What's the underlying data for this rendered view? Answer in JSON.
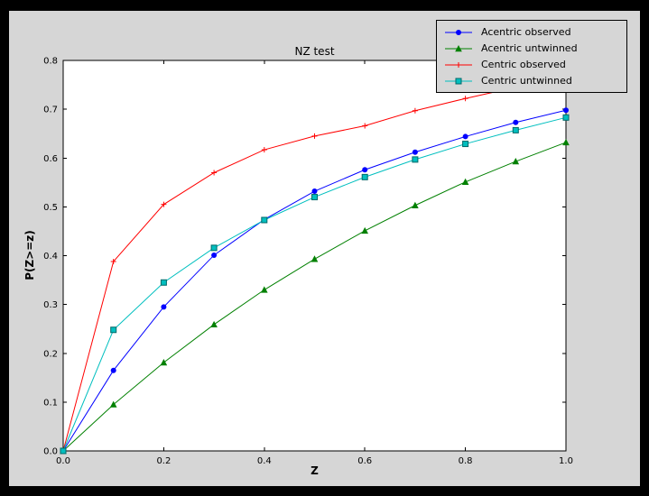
{
  "window": {
    "background": "#000000",
    "figure_background": "#d6d6d6",
    "plot_background": "#ffffff",
    "axis_color": "#000000"
  },
  "chart_data": {
    "type": "line",
    "title": "NZ test",
    "xlabel": "Z",
    "ylabel": "P(Z>=z)",
    "xlim": [
      0.0,
      1.0
    ],
    "ylim": [
      0.0,
      0.8
    ],
    "xticks": [
      "0.0",
      "0.2",
      "0.4",
      "0.6",
      "0.8",
      "1.0"
    ],
    "yticks": [
      "0.0",
      "0.1",
      "0.2",
      "0.3",
      "0.4",
      "0.5",
      "0.6",
      "0.7",
      "0.8"
    ],
    "grid": false,
    "legend_position": "upper right",
    "x": [
      0.0,
      0.1,
      0.2,
      0.3,
      0.4,
      0.5,
      0.6,
      0.7,
      0.8,
      0.9,
      1.0
    ],
    "series": [
      {
        "name": "Acentric observed",
        "color": "#0000ff",
        "marker": "circle",
        "values": [
          0.0,
          0.165,
          0.295,
          0.401,
          0.474,
          0.532,
          0.576,
          0.612,
          0.644,
          0.673,
          0.698
        ]
      },
      {
        "name": "Acentric untwinned",
        "color": "#008000",
        "marker": "triangle",
        "values": [
          0.0,
          0.095,
          0.181,
          0.259,
          0.33,
          0.393,
          0.451,
          0.503,
          0.551,
          0.593,
          0.632
        ]
      },
      {
        "name": "Centric observed",
        "color": "#ff0000",
        "marker": "plus",
        "values": [
          0.0,
          0.388,
          0.505,
          0.57,
          0.617,
          0.645,
          0.666,
          0.697,
          0.722,
          0.745,
          0.765
        ]
      },
      {
        "name": "Centric untwinned",
        "color": "#00bfbf",
        "marker": "square",
        "values": [
          0.0,
          0.248,
          0.345,
          0.416,
          0.473,
          0.52,
          0.561,
          0.597,
          0.629,
          0.657,
          0.683
        ]
      }
    ]
  }
}
